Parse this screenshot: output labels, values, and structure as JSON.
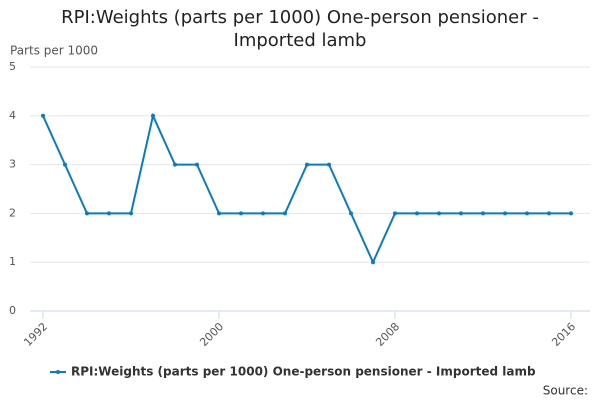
{
  "chart_data": {
    "type": "line",
    "title": "RPI:Weights (parts per 1000) One-person pensioner - Imported lamb",
    "y_label": "Parts per 1000",
    "source": "Source:",
    "x": [
      1992,
      1993,
      1994,
      1995,
      1996,
      1997,
      1998,
      1999,
      2000,
      2001,
      2002,
      2003,
      2004,
      2005,
      2006,
      2007,
      2008,
      2009,
      2010,
      2011,
      2012,
      2013,
      2014,
      2015,
      2016
    ],
    "series": [
      {
        "name": "RPI:Weights (parts per 1000) One-person pensioner - Imported lamb",
        "color": "#0b7bbf",
        "values": [
          4,
          3,
          2,
          2,
          2,
          4,
          3,
          3,
          2,
          2,
          2,
          2,
          3,
          3,
          2,
          1,
          2,
          2,
          2,
          2,
          2,
          2,
          2,
          2,
          2
        ]
      }
    ],
    "xlim": [
      1992,
      2016
    ],
    "xticks": [
      1992,
      2000,
      2008,
      2016
    ],
    "ylim": [
      0,
      5
    ],
    "yticks": [
      0,
      1,
      2,
      3,
      4,
      5
    ],
    "grid": true,
    "legend": "bottom"
  }
}
